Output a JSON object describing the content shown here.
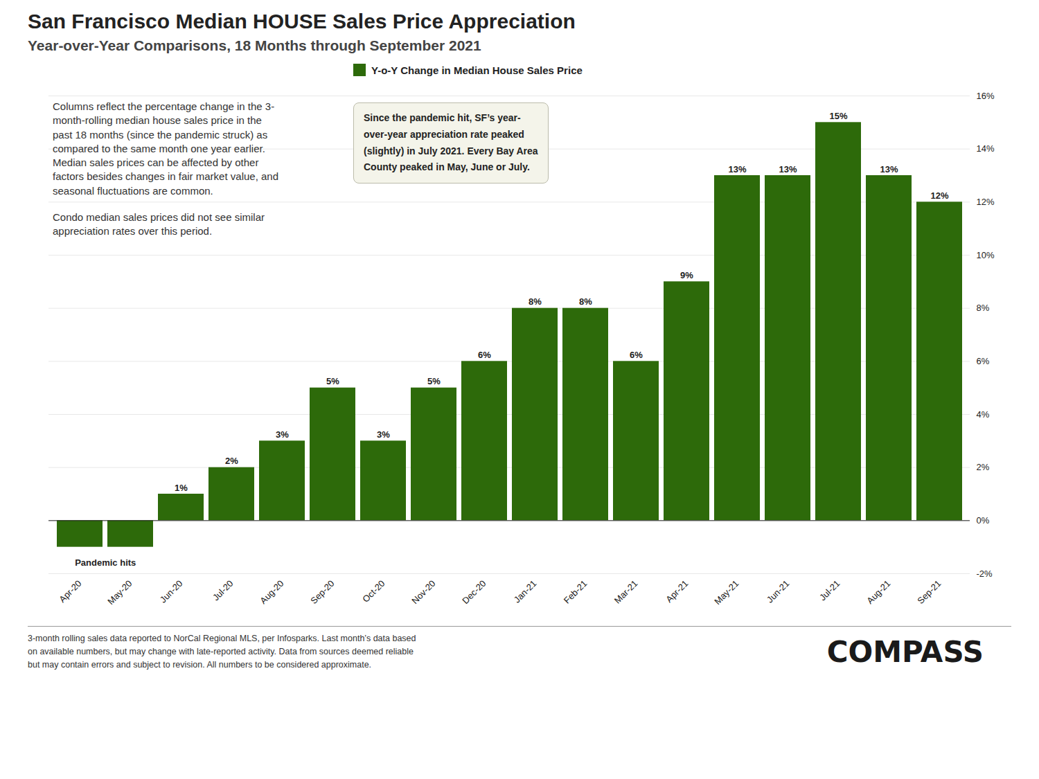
{
  "chart_data": {
    "type": "bar",
    "title": "San Francisco Median HOUSE Sales Price Appreciation",
    "subtitle": "Year-over-Year Comparisons, 18 Months through September 2021",
    "categories": [
      "Apr-20",
      "May-20",
      "Jun-20",
      "Jul-20",
      "Aug-20",
      "Sep-20",
      "Oct-20",
      "Nov-20",
      "Dec-20",
      "Jan-21",
      "Feb-21",
      "Mar-21",
      "Apr-21",
      "May-21",
      "Jun-21",
      "Jul-21",
      "Aug-21",
      "Sep-21"
    ],
    "series": [
      {
        "name": "Y-o-Y Change in Median House Sales Price",
        "color": "#2d6a0a",
        "values": [
          -1,
          -1,
          1,
          2,
          3,
          5,
          3,
          5,
          6,
          8,
          8,
          6,
          9,
          13,
          13,
          15,
          13,
          12
        ],
        "value_labels": [
          null,
          null,
          "1%",
          "2%",
          "3%",
          "5%",
          "3%",
          "5%",
          "6%",
          "8%",
          "8%",
          "6%",
          "9%",
          "13%",
          "13%",
          "15%",
          "13%",
          "12%"
        ]
      }
    ],
    "ylim": [
      -2,
      16
    ],
    "yticks": [
      {
        "value": -2,
        "label": "-2%"
      },
      {
        "value": 0,
        "label": "0%"
      },
      {
        "value": 2,
        "label": "2%"
      },
      {
        "value": 4,
        "label": "4%"
      },
      {
        "value": 6,
        "label": "6%"
      },
      {
        "value": 8,
        "label": "8%"
      },
      {
        "value": 10,
        "label": "10%"
      },
      {
        "value": 12,
        "label": "12%"
      },
      {
        "value": 14,
        "label": "14%"
      },
      {
        "value": 16,
        "label": "16%"
      }
    ],
    "grid": true,
    "legend": "top",
    "data_labels": true,
    "annotations": [
      "Pandemic hits",
      "Columns reflect the percentage change in the 3-\nmonth-rolling median house sales price in the\npast 18 months (since the pandemic struck) as\ncompared to the same month one year earlier.\nMedian sales prices can be affected by other\nfactors besides changes in fair market value, and\nseasonal fluctuations are common.",
      "Condo median sales prices did not see similar\nappreciation rates over this period.",
      "Since the pandemic hit, SF’s year-\nover-year appreciation rate peaked\n(slightly) in July 2021. Every Bay Area\nCounty peaked in May, June or July.",
      "3-month rolling sales data reported to NorCal Regional MLS, per Infosparks. Last month’s data based\non available numbers, but may change with late-reported activity. Data from sources deemed reliable\nbut may contain errors and subject to revision. All numbers to be considered approximate.",
      "COMPASS"
    ]
  }
}
